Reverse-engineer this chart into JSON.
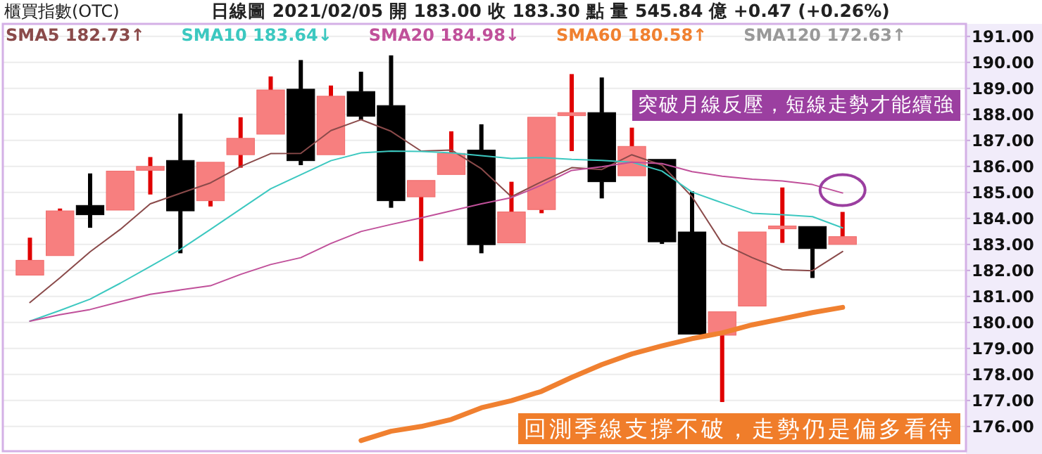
{
  "chart_data": {
    "type": "candlestick",
    "title": "櫃買指數(OTC)",
    "subtitle": "日線圖  2021/02/05  開 183.00  收 183.30  點  量 545.84 億  +0.47 (+0.26%)",
    "categories": [
      null,
      null,
      null,
      null,
      null,
      null,
      null,
      null,
      null,
      null,
      null,
      null,
      null,
      null,
      null,
      null,
      null,
      null,
      null,
      null,
      null,
      null,
      null,
      null,
      null,
      null,
      null,
      null
    ],
    "ohlc": [
      [
        181.82,
        183.26,
        181.82,
        182.39
      ],
      [
        182.57,
        184.38,
        182.57,
        184.29
      ],
      [
        184.5,
        185.73,
        183.64,
        184.14
      ],
      [
        184.32,
        185.82,
        184.32,
        185.82
      ],
      [
        185.85,
        186.36,
        184.92,
        186.0
      ],
      [
        186.23,
        188.03,
        182.66,
        184.29
      ],
      [
        184.68,
        186.16,
        184.46,
        186.16
      ],
      [
        186.45,
        187.89,
        185.95,
        187.08
      ],
      [
        187.24,
        189.46,
        187.24,
        188.94
      ],
      [
        188.97,
        190.09,
        186.05,
        186.22
      ],
      [
        186.45,
        189.11,
        186.45,
        188.7
      ],
      [
        188.88,
        189.64,
        187.8,
        187.93
      ],
      [
        188.34,
        190.27,
        184.41,
        184.68
      ],
      [
        184.83,
        185.46,
        182.36,
        185.46
      ],
      [
        185.69,
        187.35,
        185.69,
        186.5
      ],
      [
        186.63,
        187.62,
        182.66,
        182.99
      ],
      [
        183.06,
        185.41,
        183.06,
        184.25
      ],
      [
        184.34,
        187.89,
        184.2,
        187.89
      ],
      [
        187.95,
        189.55,
        186.59,
        188.07
      ],
      [
        188.07,
        189.42,
        184.77,
        185.41
      ],
      [
        185.64,
        187.49,
        185.64,
        186.77
      ],
      [
        186.27,
        186.27,
        183.02,
        183.1
      ],
      [
        183.48,
        185.04,
        179.55,
        179.55
      ],
      [
        179.51,
        180.41,
        176.94,
        180.41
      ],
      [
        180.63,
        183.48,
        180.63,
        183.48
      ],
      [
        183.6,
        185.19,
        183.06,
        183.71
      ],
      [
        183.69,
        183.69,
        181.71,
        182.84
      ],
      [
        183.0,
        184.25,
        183.0,
        183.3
      ]
    ],
    "series": [
      {
        "name": "SMA5 182.73↑",
        "type": "line",
        "color": "#8a4a4a",
        "values": [
          180.77,
          181.72,
          182.72,
          183.58,
          184.56,
          184.97,
          185.37,
          186.0,
          186.49,
          186.5,
          187.38,
          187.8,
          187.35,
          186.59,
          186.63,
          185.91,
          184.83,
          185.41,
          185.95,
          185.88,
          186.45,
          186.05,
          184.83,
          183.03,
          182.49,
          182.03,
          181.99,
          182.73
        ]
      },
      {
        "name": "SMA10 183.64↓",
        "type": "line",
        "color": "#3cc8c0",
        "values": [
          180.05,
          180.46,
          180.9,
          181.51,
          182.15,
          182.81,
          183.58,
          184.36,
          185.14,
          185.68,
          186.22,
          186.52,
          186.59,
          186.57,
          186.52,
          186.41,
          186.3,
          186.34,
          186.27,
          186.23,
          186.16,
          185.82,
          185.01,
          184.6,
          184.2,
          184.14,
          184.07,
          183.64
        ]
      },
      {
        "name": "SMA20 184.98↓",
        "type": "line",
        "color": "#c0509a",
        "values": [
          180.05,
          180.3,
          180.5,
          180.8,
          181.08,
          181.25,
          181.41,
          181.85,
          182.23,
          182.49,
          183.04,
          183.5,
          183.77,
          184.02,
          184.29,
          184.56,
          184.8,
          185.28,
          185.85,
          185.99,
          186.16,
          186.11,
          185.8,
          185.62,
          185.51,
          185.44,
          185.3,
          184.98
        ]
      },
      {
        "name": "SMA60 180.58↑",
        "type": "line",
        "color": "#f08030",
        "values": [
          null,
          null,
          null,
          null,
          null,
          null,
          null,
          null,
          null,
          null,
          null,
          175.46,
          175.82,
          176.0,
          176.27,
          176.72,
          176.99,
          177.35,
          177.89,
          178.38,
          178.79,
          179.1,
          179.38,
          179.6,
          179.91,
          180.14,
          180.38,
          180.58
        ]
      },
      {
        "name": "SMA120 172.63↑",
        "type": "line",
        "color": "#999999",
        "values": [
          null,
          null,
          null,
          null,
          null,
          null,
          null,
          null,
          null,
          null,
          null,
          null,
          null,
          null,
          null,
          null,
          null,
          null,
          null,
          null,
          null,
          null,
          null,
          null,
          null,
          null,
          null,
          null
        ]
      }
    ],
    "ylim": [
      175.05,
      191.48
    ],
    "yticks": [
      {
        "value": 176,
        "label": "176.00"
      },
      {
        "value": 177,
        "label": "177.00"
      },
      {
        "value": 178,
        "label": "178.00"
      },
      {
        "value": 179,
        "label": "179.00"
      },
      {
        "value": 180,
        "label": "180.00"
      },
      {
        "value": 181,
        "label": "181.00"
      },
      {
        "value": 182,
        "label": "182.00"
      },
      {
        "value": 183,
        "label": "183.00"
      },
      {
        "value": 184,
        "label": "184.00"
      },
      {
        "value": 185,
        "label": "185.00"
      },
      {
        "value": 186,
        "label": "186.00"
      },
      {
        "value": 187,
        "label": "187.00"
      },
      {
        "value": 188,
        "label": "188.00"
      },
      {
        "value": 189,
        "label": "189.00"
      },
      {
        "value": 190,
        "label": "190.00"
      },
      {
        "value": 191,
        "label": "191.00"
      }
    ],
    "tick_labels": "y",
    "grid": "y",
    "legend": "top left",
    "annotations": [
      "突破月線反壓，短線走勢才能續強",
      "回測季線支撐不破，走勢仍是偏多看待"
    ]
  }
}
